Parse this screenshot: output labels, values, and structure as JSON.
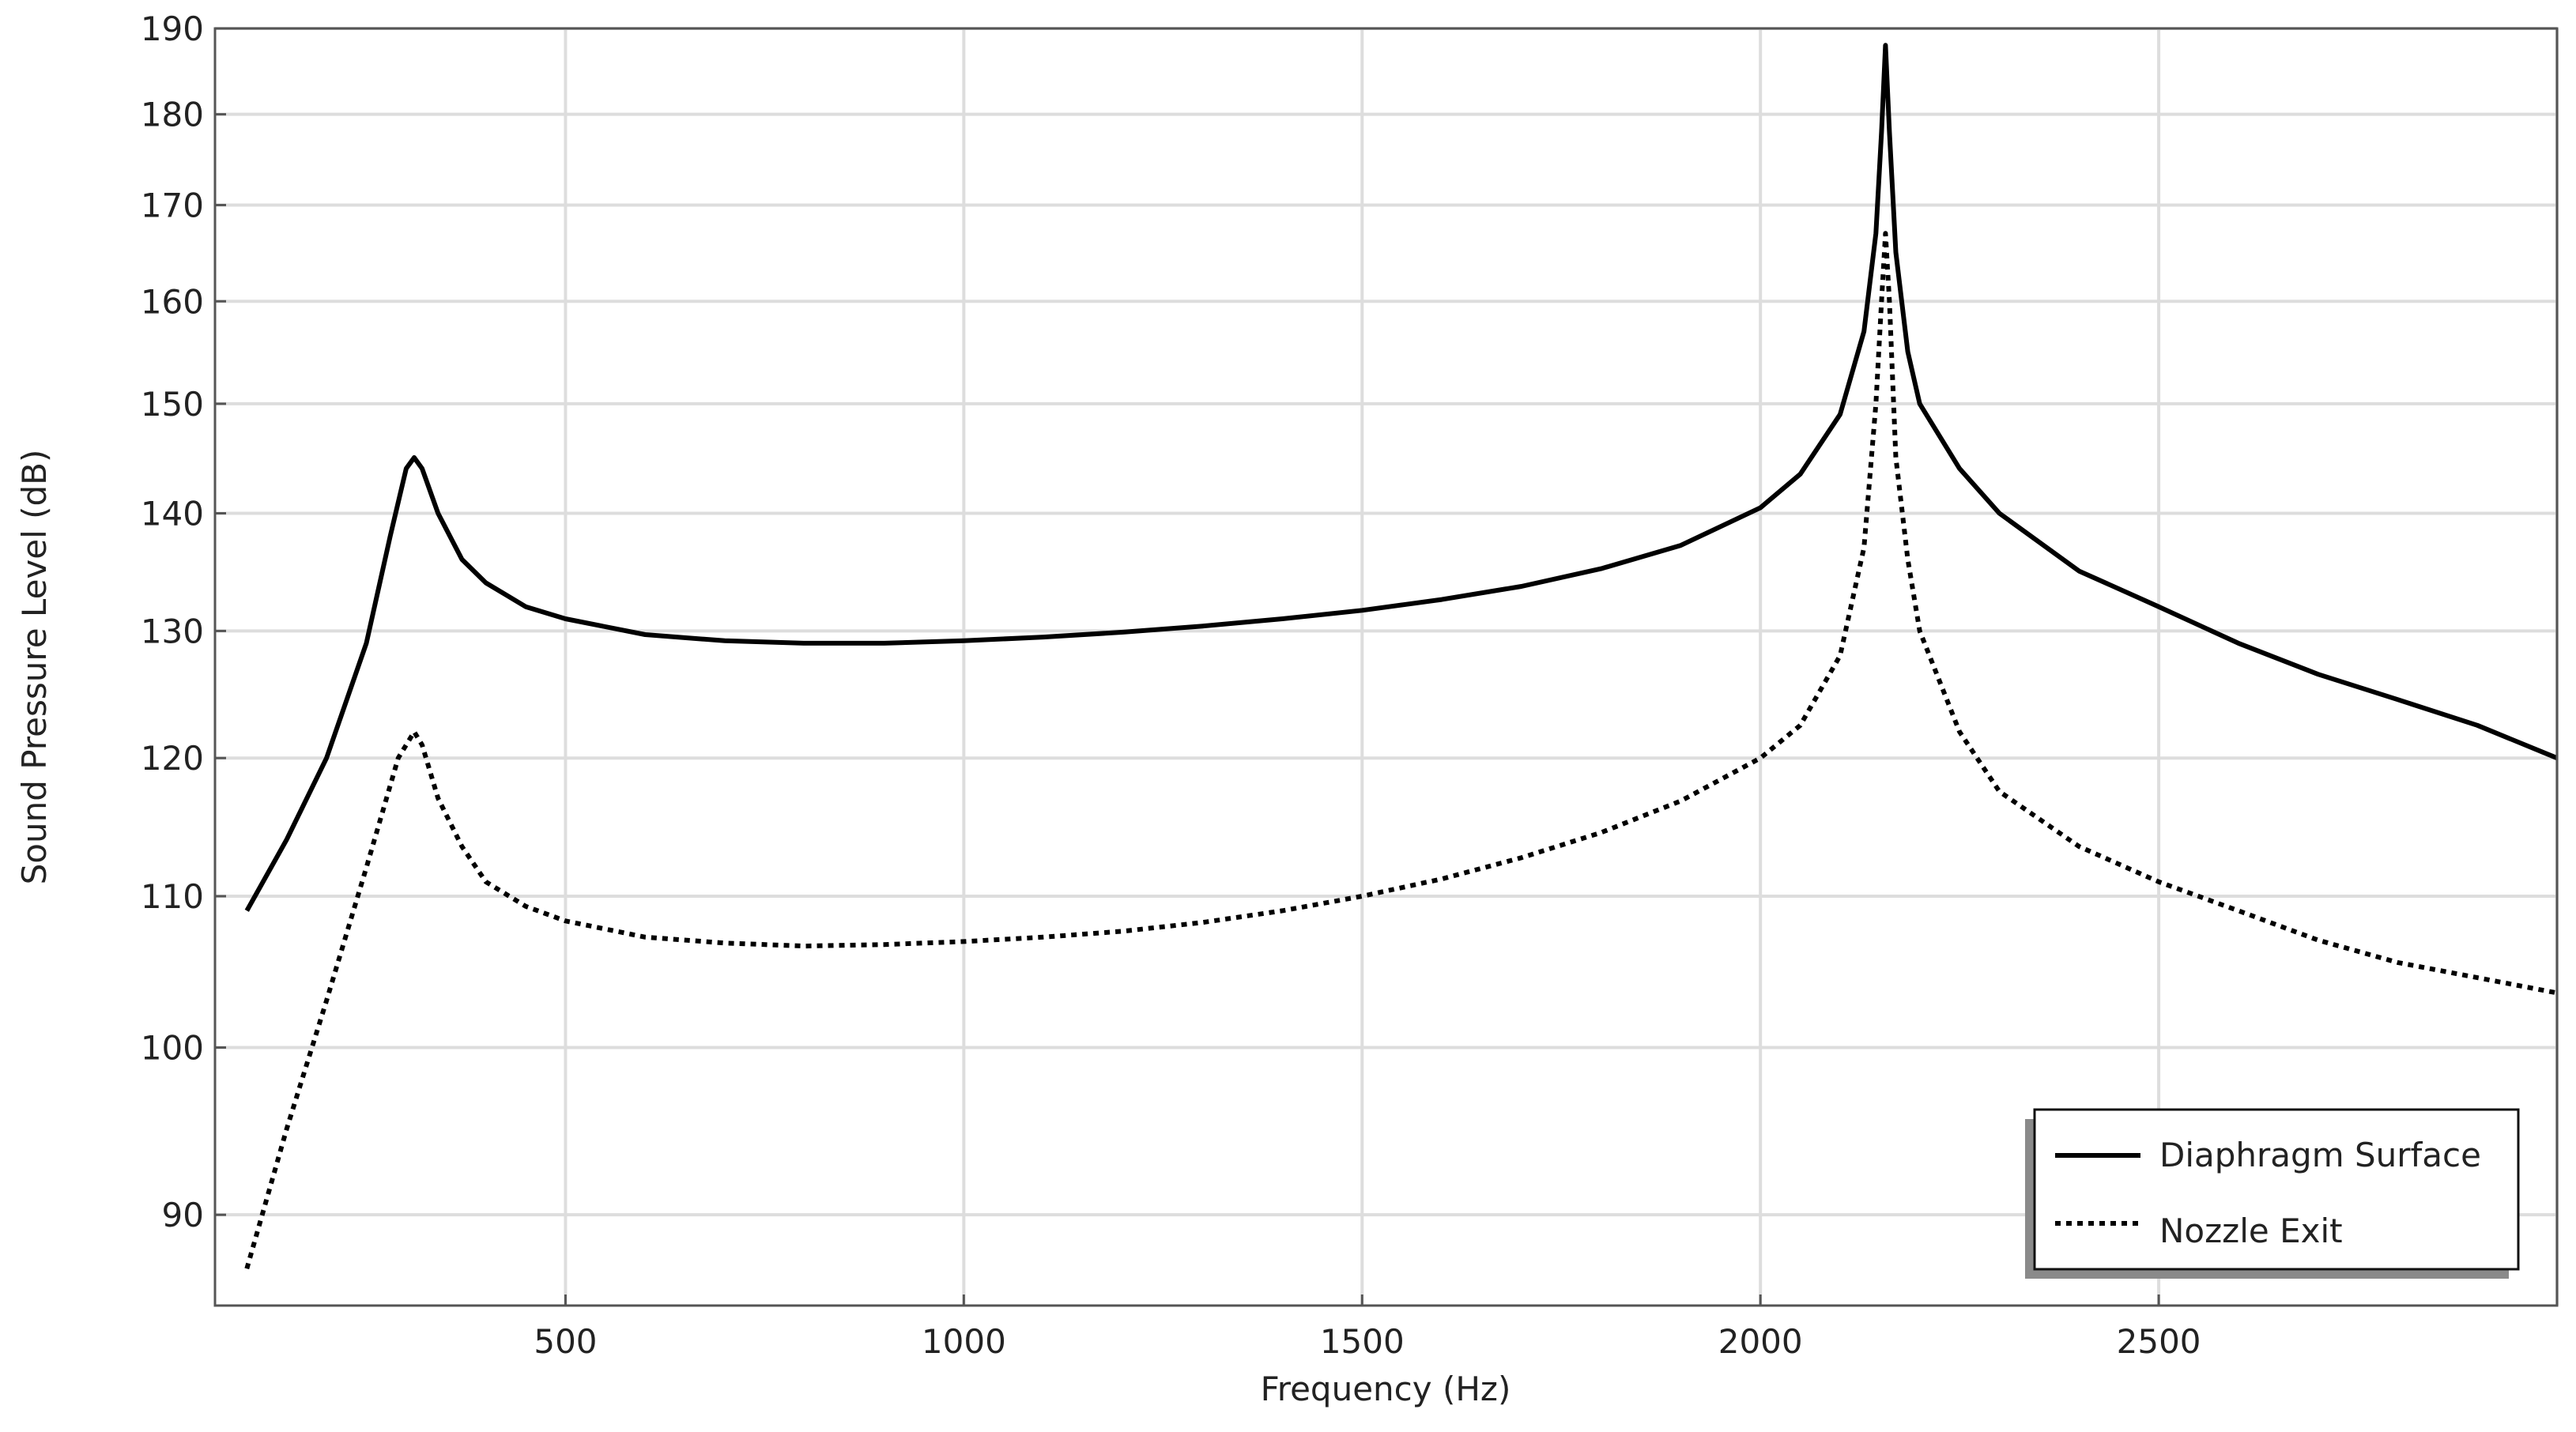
{
  "chart_data": {
    "type": "line",
    "title": "",
    "xlabel": "Frequency (Hz)",
    "ylabel": "Sound Pressure Level (dB)",
    "xlim": [
      60,
      3000
    ],
    "ylim": [
      85,
      190
    ],
    "y_scale": "log",
    "x_ticks": [
      500,
      1000,
      1500,
      2000,
      2500
    ],
    "y_ticks": [
      90,
      100,
      110,
      120,
      130,
      140,
      150,
      160,
      170,
      180,
      190
    ],
    "grid": true,
    "legend_position": "bottom-right",
    "series": [
      {
        "name": "Diaphragm Surface",
        "style": "solid",
        "color": "#000000",
        "points": [
          [
            100,
            109
          ],
          [
            150,
            114
          ],
          [
            200,
            120
          ],
          [
            250,
            129
          ],
          [
            280,
            138
          ],
          [
            300,
            144
          ],
          [
            310,
            145
          ],
          [
            320,
            144
          ],
          [
            340,
            140
          ],
          [
            370,
            136
          ],
          [
            400,
            134
          ],
          [
            450,
            132
          ],
          [
            500,
            131
          ],
          [
            600,
            129.7
          ],
          [
            700,
            129.2
          ],
          [
            800,
            129
          ],
          [
            900,
            129
          ],
          [
            1000,
            129.2
          ],
          [
            1100,
            129.5
          ],
          [
            1200,
            129.9
          ],
          [
            1300,
            130.4
          ],
          [
            1400,
            131
          ],
          [
            1500,
            131.7
          ],
          [
            1600,
            132.6
          ],
          [
            1700,
            133.7
          ],
          [
            1800,
            135.2
          ],
          [
            1900,
            137.2
          ],
          [
            2000,
            140.5
          ],
          [
            2050,
            143.5
          ],
          [
            2100,
            149
          ],
          [
            2130,
            157
          ],
          [
            2145,
            167
          ],
          [
            2152,
            178
          ],
          [
            2157,
            188
          ],
          [
            2162,
            178
          ],
          [
            2170,
            165
          ],
          [
            2185,
            155
          ],
          [
            2200,
            150
          ],
          [
            2250,
            144
          ],
          [
            2300,
            140
          ],
          [
            2400,
            135
          ],
          [
            2500,
            132
          ],
          [
            2600,
            129
          ],
          [
            2700,
            126.5
          ],
          [
            2800,
            124.5
          ],
          [
            2900,
            122.5
          ],
          [
            3000,
            120
          ]
        ]
      },
      {
        "name": "Nozzle Exit",
        "style": "dotted",
        "color": "#000000",
        "points": [
          [
            100,
            87
          ],
          [
            150,
            95
          ],
          [
            200,
            103
          ],
          [
            250,
            112
          ],
          [
            290,
            120
          ],
          [
            310,
            122
          ],
          [
            320,
            121
          ],
          [
            340,
            117
          ],
          [
            370,
            113.5
          ],
          [
            400,
            111
          ],
          [
            450,
            109.3
          ],
          [
            500,
            108.3
          ],
          [
            600,
            107.2
          ],
          [
            700,
            106.8
          ],
          [
            800,
            106.6
          ],
          [
            900,
            106.7
          ],
          [
            1000,
            106.9
          ],
          [
            1100,
            107.2
          ],
          [
            1200,
            107.6
          ],
          [
            1300,
            108.2
          ],
          [
            1400,
            109
          ],
          [
            1500,
            110
          ],
          [
            1600,
            111.2
          ],
          [
            1700,
            112.7
          ],
          [
            1800,
            114.5
          ],
          [
            1900,
            116.8
          ],
          [
            2000,
            120
          ],
          [
            2050,
            122.5
          ],
          [
            2100,
            128
          ],
          [
            2130,
            137
          ],
          [
            2145,
            150
          ],
          [
            2152,
            160
          ],
          [
            2157,
            167
          ],
          [
            2162,
            160
          ],
          [
            2170,
            145
          ],
          [
            2185,
            136
          ],
          [
            2200,
            130
          ],
          [
            2250,
            122
          ],
          [
            2300,
            117.5
          ],
          [
            2400,
            113.5
          ],
          [
            2500,
            111
          ],
          [
            2600,
            109
          ],
          [
            2700,
            107
          ],
          [
            2800,
            105.5
          ],
          [
            2900,
            104.5
          ],
          [
            3000,
            103.5
          ]
        ]
      }
    ]
  }
}
